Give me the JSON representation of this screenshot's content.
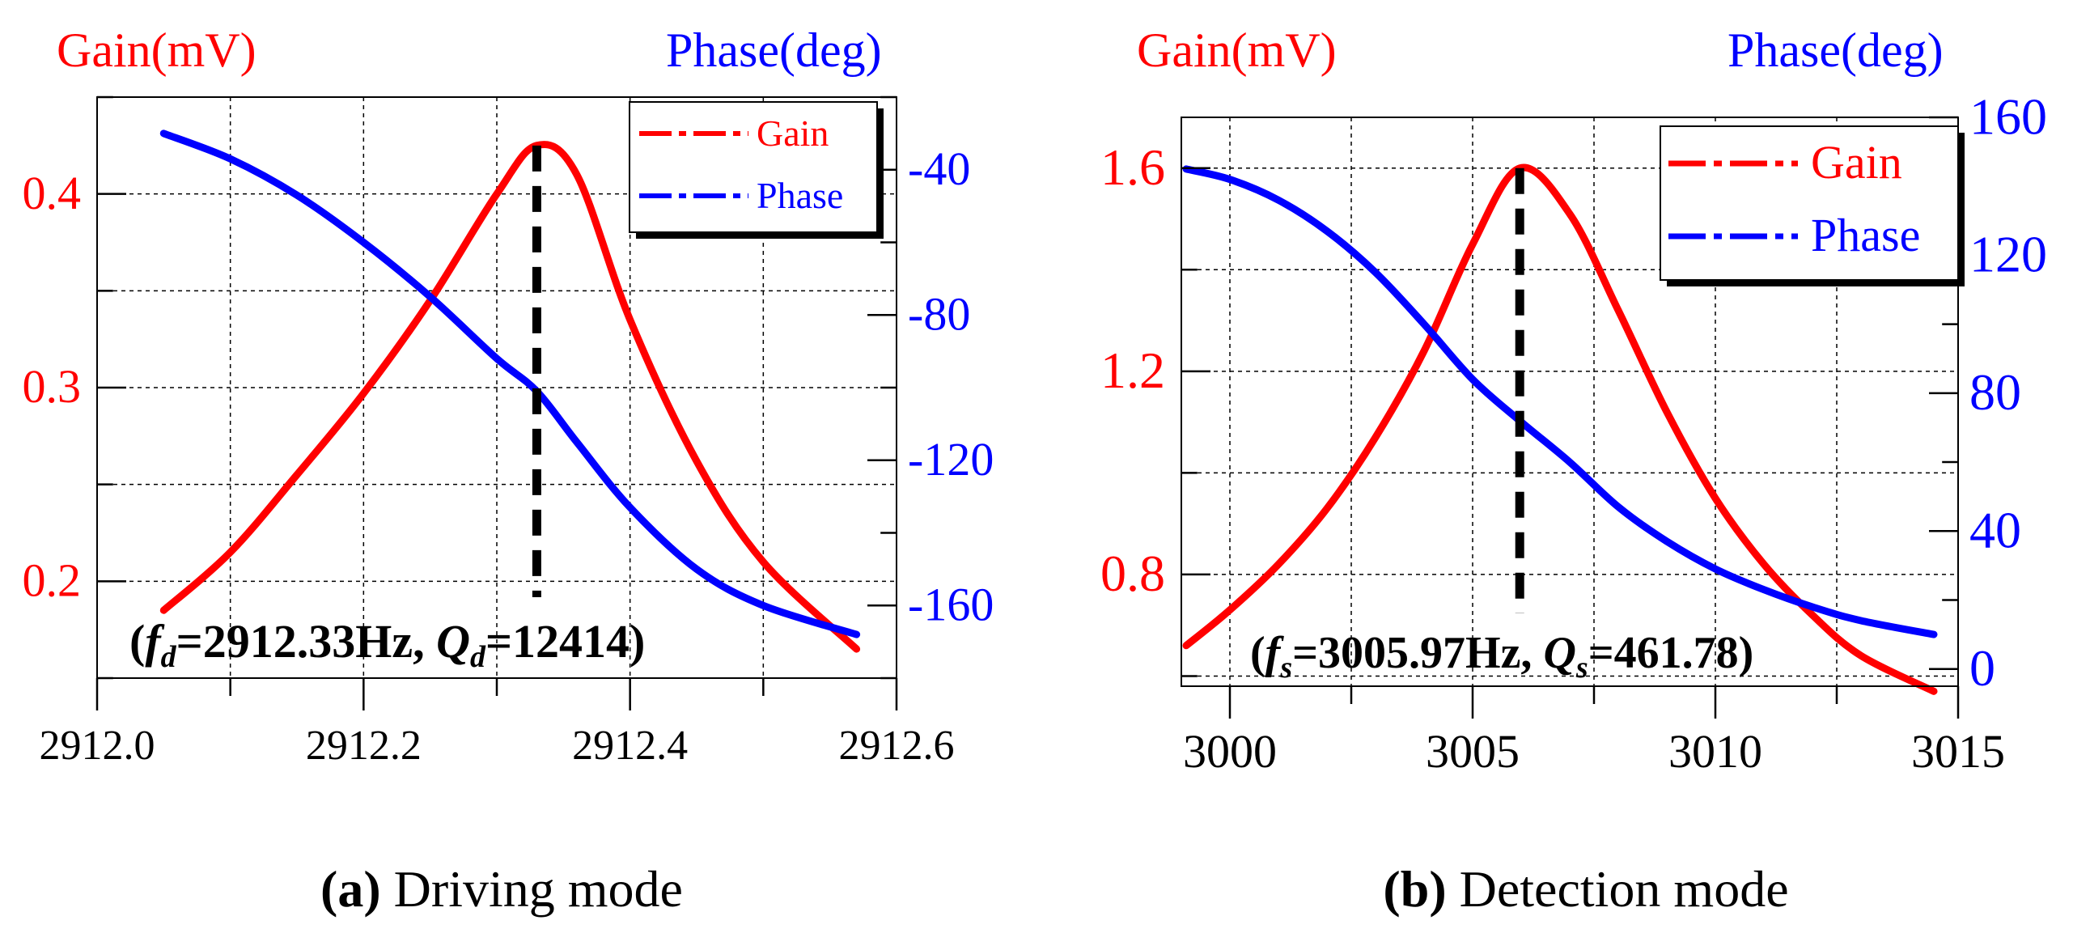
{
  "colors": {
    "gain": "#ff0000",
    "phase": "#0000ff",
    "marker": "#000000",
    "grid": "#000000",
    "legend_shadow": "#000000"
  },
  "chart_data": [
    {
      "id": "driving",
      "type": "line",
      "caption": {
        "letter": "(a)",
        "text": "Driving mode"
      },
      "ylabel_left": "Gain(mV)",
      "ylabel_right": "Phase(deg)",
      "xlim": [
        2912.0,
        2912.6
      ],
      "ylim_left": [
        0.15,
        0.45
      ],
      "ylim_right": [
        -180,
        -20
      ],
      "xticks": [
        2912.0,
        2912.1,
        2912.2,
        2912.3,
        2912.4,
        2912.5,
        2912.6
      ],
      "xtick_labels": [
        "2912.0",
        "",
        "2912.2",
        "",
        "2912.4",
        "",
        "2912.6"
      ],
      "yticks_left": [
        0.15,
        0.2,
        0.25,
        0.3,
        0.35,
        0.4,
        0.45
      ],
      "ytick_labels_left": [
        "",
        "0.2",
        "",
        "0.3",
        "",
        "0.4",
        ""
      ],
      "yticks_right": [
        -180,
        -160,
        -140,
        -120,
        -100,
        -80,
        -60,
        -40,
        -20
      ],
      "ytick_labels_right": [
        "",
        "-160",
        "",
        "-120",
        "",
        "-80",
        "",
        "-40",
        ""
      ],
      "grid": true,
      "legend": {
        "position": "top-right",
        "gain_label": "Gain",
        "phase_label": "Phase"
      },
      "marker_x": 2912.33,
      "annotation": {
        "f_sym": "f",
        "f_sub": "d",
        "f_val": "=2912.33Hz, ",
        "q_sym": "Q",
        "q_sub": "d",
        "q_val": "=12414)",
        "open": "("
      },
      "series": [
        {
          "name": "Gain",
          "axis": "left",
          "x": [
            2912.05,
            2912.1,
            2912.15,
            2912.2,
            2912.25,
            2912.3,
            2912.33,
            2912.36,
            2912.4,
            2912.45,
            2912.5,
            2912.57
          ],
          "values": [
            0.185,
            0.215,
            0.255,
            0.297,
            0.345,
            0.4,
            0.425,
            0.41,
            0.335,
            0.262,
            0.21,
            0.165
          ]
        },
        {
          "name": "Phase",
          "axis": "right",
          "x": [
            2912.05,
            2912.1,
            2912.15,
            2912.2,
            2912.25,
            2912.3,
            2912.33,
            2912.36,
            2912.4,
            2912.45,
            2912.5,
            2912.57
          ],
          "values": [
            -30,
            -37,
            -47,
            -60,
            -75,
            -92,
            -101,
            -115,
            -133,
            -150,
            -160,
            -168
          ]
        }
      ]
    },
    {
      "id": "detection",
      "type": "line",
      "caption": {
        "letter": "(b)",
        "text": "Detection mode"
      },
      "ylabel_left": "Gain(mV)",
      "ylabel_right": "Phase(deg)",
      "xlim": [
        2999.0,
        3015.0
      ],
      "ylim_left": [
        0.58,
        1.7
      ],
      "ylim_right": [
        -5,
        160
      ],
      "xticks": [
        3000,
        3002.5,
        3005,
        3007.5,
        3010,
        3012.5,
        3015
      ],
      "xtick_labels": [
        "3000",
        "",
        "3005",
        "",
        "3010",
        "",
        "3015"
      ],
      "yticks_left": [
        0.6,
        0.8,
        1.0,
        1.2,
        1.4,
        1.6
      ],
      "ytick_labels_left": [
        "",
        "0.8",
        "",
        "1.2",
        "",
        "1.6"
      ],
      "yticks_right": [
        0,
        20,
        40,
        60,
        80,
        100,
        120,
        140,
        160
      ],
      "ytick_labels_right": [
        "0",
        "",
        "40",
        "",
        "80",
        "",
        "120",
        "",
        "160"
      ],
      "grid": true,
      "legend": {
        "position": "top-right",
        "gain_label": "Gain",
        "phase_label": "Phase"
      },
      "marker_x": 3005.97,
      "annotation": {
        "f_sym": "f",
        "f_sub": "s",
        "f_val": "=3005.97Hz, ",
        "q_sym": "Q",
        "q_sub": "s",
        "q_val": "=461.78)",
        "open": "("
      },
      "series": [
        {
          "name": "Gain",
          "axis": "left",
          "x": [
            2999.1,
            3000.0,
            3001.0,
            3002.0,
            3003.0,
            3004.0,
            3005.0,
            3005.97,
            3007.0,
            3008.0,
            3009.0,
            3010.0,
            3011.0,
            3012.0,
            3013.0,
            3014.5
          ],
          "values": [
            0.66,
            0.73,
            0.82,
            0.93,
            1.07,
            1.24,
            1.45,
            1.6,
            1.51,
            1.32,
            1.12,
            0.95,
            0.82,
            0.72,
            0.64,
            0.57
          ]
        },
        {
          "name": "Phase",
          "axis": "right",
          "x": [
            2999.1,
            3000.0,
            3001.0,
            3002.0,
            3003.0,
            3004.0,
            3005.0,
            3005.97,
            3007.0,
            3008.0,
            3009.0,
            3010.0,
            3011.0,
            3012.0,
            3013.0,
            3014.5
          ],
          "values": [
            145,
            142,
            136,
            127,
            115,
            100,
            84,
            72,
            60,
            47,
            37,
            29,
            23,
            18,
            14,
            10
          ]
        }
      ]
    }
  ]
}
